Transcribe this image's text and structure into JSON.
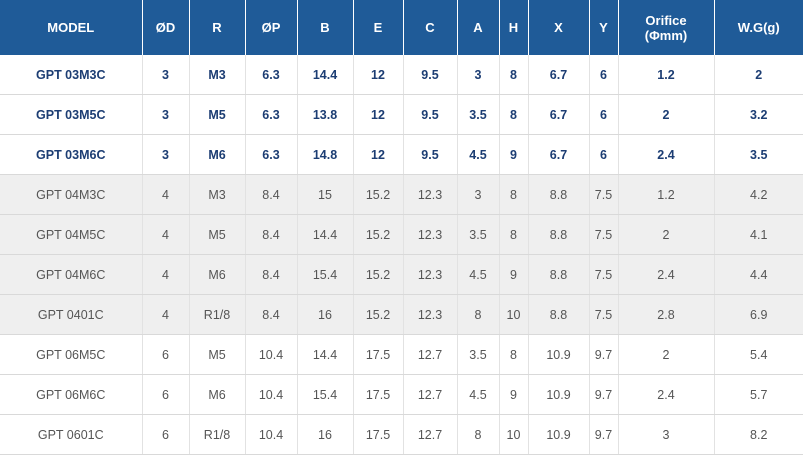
{
  "table": {
    "headers": [
      "MODEL",
      "ØD",
      "R",
      "ØP",
      "B",
      "E",
      "C",
      "A",
      "H",
      "X",
      "Y",
      "Orifice",
      "W.G(g)"
    ],
    "orifice_unit": "(Φmm)",
    "rows": [
      {
        "style": "hl",
        "cells": [
          "GPT 03M3C",
          "3",
          "M3",
          "6.3",
          "14.4",
          "12",
          "9.5",
          "3",
          "8",
          "6.7",
          "6",
          "1.2",
          "2"
        ]
      },
      {
        "style": "hl",
        "cells": [
          "GPT 03M5C",
          "3",
          "M5",
          "6.3",
          "13.8",
          "12",
          "9.5",
          "3.5",
          "8",
          "6.7",
          "6",
          "2",
          "3.2"
        ]
      },
      {
        "style": "hl",
        "cells": [
          "GPT 03M6C",
          "3",
          "M6",
          "6.3",
          "14.8",
          "12",
          "9.5",
          "4.5",
          "9",
          "6.7",
          "6",
          "2.4",
          "3.5"
        ]
      },
      {
        "style": "grey",
        "cells": [
          "GPT 04M3C",
          "4",
          "M3",
          "8.4",
          "15",
          "15.2",
          "12.3",
          "3",
          "8",
          "8.8",
          "7.5",
          "1.2",
          "4.2"
        ]
      },
      {
        "style": "grey",
        "cells": [
          "GPT 04M5C",
          "4",
          "M5",
          "8.4",
          "14.4",
          "15.2",
          "12.3",
          "3.5",
          "8",
          "8.8",
          "7.5",
          "2",
          "4.1"
        ]
      },
      {
        "style": "grey",
        "cells": [
          "GPT 04M6C",
          "4",
          "M6",
          "8.4",
          "15.4",
          "15.2",
          "12.3",
          "4.5",
          "9",
          "8.8",
          "7.5",
          "2.4",
          "4.4"
        ]
      },
      {
        "style": "grey",
        "cells": [
          "GPT 0401C",
          "4",
          "R1/8",
          "8.4",
          "16",
          "15.2",
          "12.3",
          "8",
          "10",
          "8.8",
          "7.5",
          "2.8",
          "6.9"
        ]
      },
      {
        "style": "white",
        "cells": [
          "GPT 06M5C",
          "6",
          "M5",
          "10.4",
          "14.4",
          "17.5",
          "12.7",
          "3.5",
          "8",
          "10.9",
          "9.7",
          "2",
          "5.4"
        ]
      },
      {
        "style": "white",
        "cells": [
          "GPT 06M6C",
          "6",
          "M6",
          "10.4",
          "15.4",
          "17.5",
          "12.7",
          "4.5",
          "9",
          "10.9",
          "9.7",
          "2.4",
          "5.7"
        ]
      },
      {
        "style": "white",
        "cells": [
          "GPT 0601C",
          "6",
          "R1/8",
          "10.4",
          "16",
          "17.5",
          "12.7",
          "8",
          "10",
          "10.9",
          "9.7",
          "3",
          "8.2"
        ]
      }
    ]
  }
}
